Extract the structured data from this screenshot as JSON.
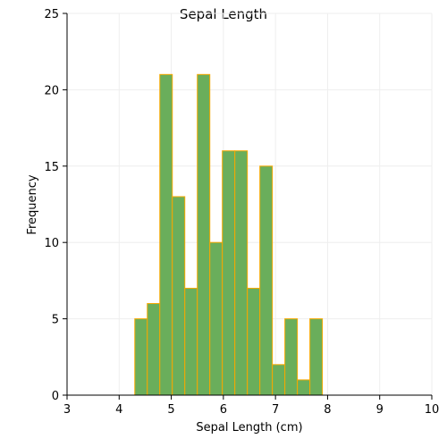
{
  "chart_data": {
    "type": "bar",
    "title": "Sepal Length",
    "xlabel": "Sepal Length (cm)",
    "ylabel": "Frequency",
    "xlim": [
      3,
      10
    ],
    "ylim": [
      0,
      25
    ],
    "x_ticks": [
      3,
      4,
      5,
      6,
      7,
      8,
      9,
      10
    ],
    "y_ticks": [
      0,
      5,
      10,
      15,
      20,
      25
    ],
    "grid": true,
    "bin_width": 0.24,
    "bins": [
      {
        "start": 4.3,
        "end": 4.54,
        "value": 5
      },
      {
        "start": 4.54,
        "end": 4.78,
        "value": 6
      },
      {
        "start": 4.78,
        "end": 5.02,
        "value": 21
      },
      {
        "start": 5.02,
        "end": 5.26,
        "value": 13
      },
      {
        "start": 5.26,
        "end": 5.5,
        "value": 7
      },
      {
        "start": 5.5,
        "end": 5.74,
        "value": 21
      },
      {
        "start": 5.74,
        "end": 5.98,
        "value": 10
      },
      {
        "start": 5.98,
        "end": 6.22,
        "value": 16
      },
      {
        "start": 6.22,
        "end": 6.46,
        "value": 16
      },
      {
        "start": 6.46,
        "end": 6.7,
        "value": 7
      },
      {
        "start": 6.7,
        "end": 6.94,
        "value": 15
      },
      {
        "start": 6.94,
        "end": 7.18,
        "value": 2
      },
      {
        "start": 7.18,
        "end": 7.42,
        "value": 5
      },
      {
        "start": 7.42,
        "end": 7.66,
        "value": 1
      },
      {
        "start": 7.66,
        "end": 7.9,
        "value": 5
      }
    ],
    "colors": {
      "bar_fill": "#6aae5b",
      "bar_edge": "#f5a800",
      "axis": "#000000",
      "grid": "#eeeeee"
    }
  }
}
